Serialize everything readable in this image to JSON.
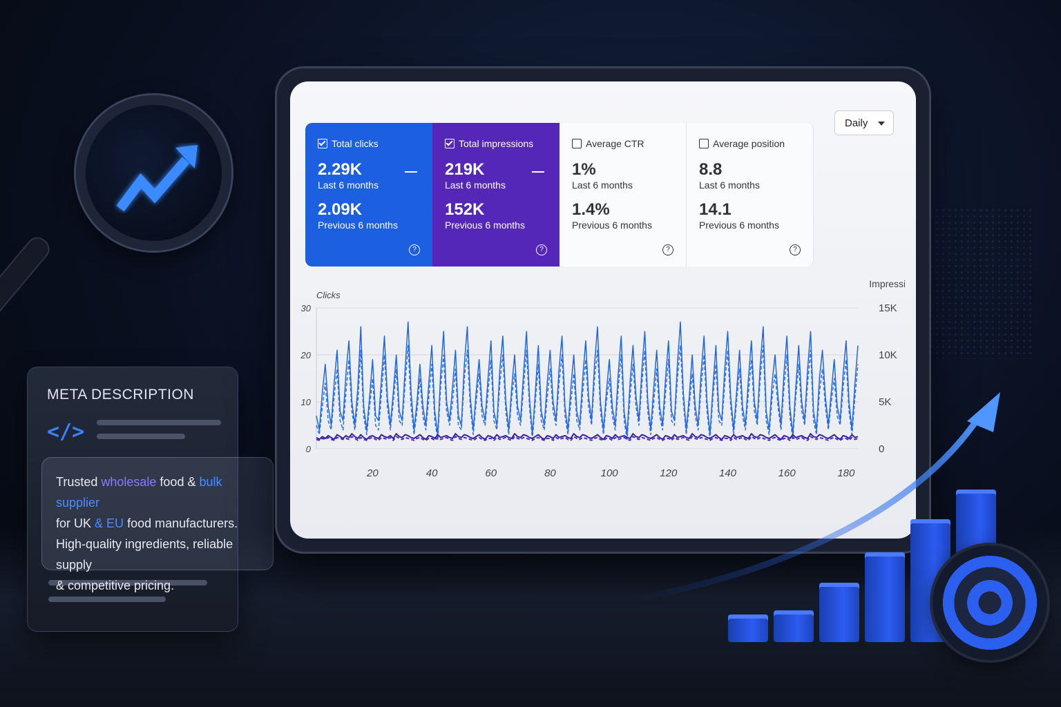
{
  "metrics": {
    "clicks": {
      "label": "Total clicks",
      "current": "2.29K",
      "current_label": "Last 6 months",
      "previous": "2.09K",
      "previous_label": "Previous 6 months",
      "checked": true,
      "color": "#1c5fe0"
    },
    "impressions": {
      "label": "Total impressions",
      "current": "219K",
      "current_label": "Last 6 months",
      "previous": "152K",
      "previous_label": "Previous 6 months",
      "checked": true,
      "color": "#5427b8"
    },
    "ctr": {
      "label": "Average CTR",
      "current": "1%",
      "current_label": "Last 6 months",
      "previous": "1.4%",
      "previous_label": "Previous 6 months",
      "checked": false
    },
    "position": {
      "label": "Average position",
      "current": "8.8",
      "current_label": "Last 6 months",
      "previous": "14.1",
      "previous_label": "Previous 6 months",
      "checked": false
    }
  },
  "period_select": {
    "value": "Daily"
  },
  "chart_data": {
    "type": "line",
    "ylabel_left": "Clicks",
    "ylabel_right": "Impressions",
    "left_ticks": [
      "30",
      "20",
      "10",
      "0"
    ],
    "right_ticks": [
      "15K",
      "10K",
      "5K",
      "0"
    ],
    "x_ticks": [
      "20",
      "40",
      "60",
      "80",
      "100",
      "120",
      "140",
      "160",
      "180"
    ],
    "ylim_left": [
      0,
      30
    ],
    "ylim_right": [
      0,
      15000
    ],
    "xlim": [
      1,
      184
    ],
    "grid": true,
    "series": [
      {
        "key": "clicks_current",
        "color": "#1f66e5",
        "style": "solid",
        "values": [
          7,
          4,
          12,
          18,
          9,
          5,
          14,
          21,
          8,
          6,
          16,
          23,
          10,
          5,
          13,
          26,
          9,
          4,
          11,
          19,
          7,
          6,
          15,
          24,
          11,
          5,
          12,
          20,
          8,
          6,
          17,
          27,
          12,
          4,
          10,
          18,
          9,
          5,
          14,
          22,
          8,
          3,
          16,
          25,
          10,
          6,
          13,
          21,
          7,
          5,
          18,
          26,
          11,
          4,
          12,
          19,
          9,
          6,
          15,
          23,
          8,
          5,
          17,
          24,
          10,
          4,
          13,
          20,
          9,
          6,
          16,
          25,
          11,
          3,
          12,
          22,
          8,
          5,
          14,
          21,
          10,
          6,
          17,
          24,
          9,
          4,
          13,
          20,
          8,
          5,
          15,
          23,
          11,
          6,
          18,
          26,
          10,
          4,
          12,
          19,
          9,
          5,
          16,
          24,
          8,
          3,
          14,
          22,
          11,
          6,
          17,
          25,
          10,
          4,
          13,
          21,
          9,
          5,
          15,
          23,
          8,
          6,
          18,
          27,
          12,
          4,
          11,
          20,
          9,
          5,
          16,
          24,
          10,
          3,
          13,
          22,
          8,
          6,
          17,
          25,
          11,
          4,
          12,
          21,
          9,
          5,
          15,
          23,
          10,
          6,
          18,
          26,
          8,
          4,
          14,
          20,
          11,
          5,
          16,
          24,
          9,
          3,
          13,
          22,
          10,
          6,
          17,
          25,
          8,
          4,
          15,
          21,
          11,
          5,
          12,
          19,
          9,
          6,
          16,
          23,
          10,
          4,
          14,
          22
        ]
      },
      {
        "key": "clicks_previous",
        "color": "#2a6ef0",
        "style": "dashed",
        "values": [
          5,
          3,
          9,
          14,
          6,
          4,
          11,
          17,
          6,
          4,
          12,
          19,
          8,
          4,
          10,
          21,
          7,
          3,
          9,
          15,
          5,
          4,
          12,
          20,
          9,
          4,
          10,
          17,
          6,
          5,
          14,
          22,
          9,
          3,
          8,
          15,
          7,
          4,
          11,
          18,
          6,
          2,
          13,
          20,
          8,
          5,
          10,
          17,
          5,
          4,
          15,
          21,
          9,
          3,
          10,
          16,
          7,
          5,
          12,
          19,
          6,
          4,
          14,
          20,
          8,
          3,
          11,
          16,
          7,
          5,
          13,
          21,
          9,
          2,
          10,
          18,
          6,
          4,
          11,
          17,
          8,
          5,
          14,
          20,
          7,
          3,
          10,
          16,
          6,
          4,
          12,
          19,
          9,
          5,
          15,
          21,
          8,
          3,
          10,
          15,
          7,
          4,
          13,
          20,
          6,
          2,
          11,
          18,
          9,
          5,
          14,
          21,
          8,
          3,
          10,
          17,
          7,
          4,
          12,
          19,
          6,
          5,
          15,
          22,
          10,
          3,
          9,
          16,
          7,
          4,
          13,
          20,
          8,
          2,
          11,
          18,
          6,
          5,
          14,
          21,
          9,
          3,
          10,
          17,
          7,
          4,
          12,
          19,
          8,
          5,
          15,
          22,
          6,
          3,
          11,
          16,
          9,
          4,
          13,
          20,
          7,
          2,
          11,
          18,
          8,
          5,
          14,
          21,
          6,
          3,
          12,
          17,
          9,
          4,
          10,
          15,
          7,
          5,
          13,
          19,
          8,
          3,
          11,
          18
        ]
      },
      {
        "key": "impressions_current",
        "color": "#3a1f9e",
        "style": "solid",
        "values": [
          1.2,
          1.0,
          1.3,
          1.1,
          1.4,
          1.2,
          1.0,
          1.5,
          1.3,
          1.1,
          1.4,
          1.2,
          1.6,
          1.3,
          1.1,
          1.5,
          1.2,
          1.0,
          1.3,
          1.4,
          1.2,
          1.1,
          1.5,
          1.3,
          1.2,
          1.4,
          1.1,
          1.6,
          1.3,
          1.2,
          1.5,
          1.4,
          1.2,
          1.1,
          1.3,
          1.5,
          1.2,
          1.0,
          1.4,
          1.3,
          1.1,
          1.5,
          1.2,
          1.3,
          1.4,
          1.2,
          1.1,
          1.6,
          1.3,
          1.2,
          1.5,
          1.4,
          1.2,
          1.1,
          1.3,
          1.5,
          1.2,
          1.0,
          1.4,
          1.3,
          1.1,
          1.5,
          1.2,
          1.3,
          1.4,
          1.2,
          1.1,
          1.6,
          1.3,
          1.2,
          1.5,
          1.4,
          1.2,
          1.1,
          1.3,
          1.5,
          1.2,
          1.0,
          1.4,
          1.3,
          1.1,
          1.5,
          1.2,
          1.3,
          1.4,
          1.2,
          1.1,
          1.6,
          1.3,
          1.2,
          1.5,
          1.4,
          1.2,
          1.1,
          1.3,
          1.5,
          1.2,
          1.0,
          1.4,
          1.3,
          1.1,
          1.5,
          1.2,
          1.3,
          1.4,
          1.2,
          1.1,
          1.6,
          1.3,
          1.2,
          1.5,
          1.4,
          1.2,
          1.1,
          1.3,
          1.5,
          1.2,
          1.0,
          1.4,
          1.3,
          1.1,
          1.5,
          1.2,
          1.3,
          1.4,
          1.2,
          1.1,
          1.6,
          1.3,
          1.2,
          1.5,
          1.4,
          1.2,
          1.1,
          1.3,
          1.5,
          1.2,
          1.0,
          1.4,
          1.3,
          1.1,
          1.5,
          1.2,
          1.3,
          1.4,
          1.2,
          1.1,
          1.6,
          1.3,
          1.2,
          1.5,
          1.4,
          1.2,
          1.1,
          1.3,
          1.5,
          1.2,
          1.0,
          1.4,
          1.3,
          1.1,
          1.5,
          1.2,
          1.3,
          1.4,
          1.2,
          1.1,
          1.6,
          1.3,
          1.2,
          1.5,
          1.4,
          1.2,
          1.1,
          1.3,
          1.5,
          1.2,
          1.0,
          1.4,
          1.3,
          1.1,
          1.5,
          1.2,
          1.3
        ]
      },
      {
        "key": "impressions_previous",
        "color": "#4b2cc4",
        "style": "dashed",
        "values": [
          1.0,
          0.9,
          1.1,
          1.0,
          1.2,
          1.0,
          0.9,
          1.2,
          1.1,
          1.0,
          1.1,
          1.0,
          1.3,
          1.1,
          0.9,
          1.2,
          1.0,
          0.9,
          1.1,
          1.2,
          1.0,
          0.9,
          1.2,
          1.1,
          1.0,
          1.2,
          0.9,
          1.3,
          1.1,
          1.0,
          1.2,
          1.1,
          1.0,
          0.9,
          1.1,
          1.2,
          1.0,
          0.9,
          1.1,
          1.1,
          0.9,
          1.2,
          1.0,
          1.1,
          1.2,
          1.0,
          0.9,
          1.3,
          1.1,
          1.0,
          1.2,
          1.1,
          1.0,
          0.9,
          1.1,
          1.2,
          1.0,
          0.9,
          1.1,
          1.1,
          0.9,
          1.2,
          1.0,
          1.1,
          1.2,
          1.0,
          0.9,
          1.3,
          1.1,
          1.0,
          1.2,
          1.1,
          1.0,
          0.9,
          1.1,
          1.2,
          1.0,
          0.9,
          1.1,
          1.1,
          0.9,
          1.2,
          1.0,
          1.1,
          1.2,
          1.0,
          0.9,
          1.3,
          1.1,
          1.0,
          1.2,
          1.1,
          1.0,
          0.9,
          1.1,
          1.2,
          1.0,
          0.9,
          1.1,
          1.1,
          0.9,
          1.2,
          1.0,
          1.1,
          1.2,
          1.0,
          0.9,
          1.3,
          1.1,
          1.0,
          1.2,
          1.1,
          1.0,
          0.9,
          1.1,
          1.2,
          1.0,
          0.9,
          1.1,
          1.1,
          0.9,
          1.2,
          1.0,
          1.1,
          1.2,
          1.0,
          0.9,
          1.3,
          1.1,
          1.0,
          1.2,
          1.1,
          1.0,
          0.9,
          1.1,
          1.2,
          1.0,
          0.9,
          1.1,
          1.1,
          0.9,
          1.2,
          1.0,
          1.1,
          1.2,
          1.0,
          0.9,
          1.3,
          1.1,
          1.0,
          1.2,
          1.1,
          1.0,
          0.9,
          1.1,
          1.2,
          1.0,
          0.9,
          1.1,
          1.1,
          0.9,
          1.2,
          1.0,
          1.1,
          1.2,
          1.0,
          0.9,
          1.3,
          1.1,
          1.0,
          1.2,
          1.1,
          1.0,
          0.9,
          1.1,
          1.2,
          1.0,
          0.9,
          1.1,
          1.1,
          0.9,
          1.2,
          1.0,
          1.1
        ]
      }
    ]
  },
  "meta_card": {
    "title": "META DESCRIPTION",
    "code_glyph": "</>",
    "text": {
      "p1": "Trusted ",
      "k1": "wholesale",
      "p2": " food & ",
      "k2": "bulk supplier",
      "p3": "for UK ",
      "k3": "&",
      "p4": " ",
      "k4": "EU",
      "p5": " food manufacturers.",
      "p6": "High-quality ingredients, reliable supply",
      "p7": "& competitive pricing."
    }
  },
  "icons": {
    "magnifier": "magnifier-trend-icon",
    "target": "target-icon",
    "growth": "growth-arrow-icon"
  },
  "growth_bars": [
    0.08,
    0.17,
    0.32,
    0.48,
    0.66,
    0.82
  ]
}
